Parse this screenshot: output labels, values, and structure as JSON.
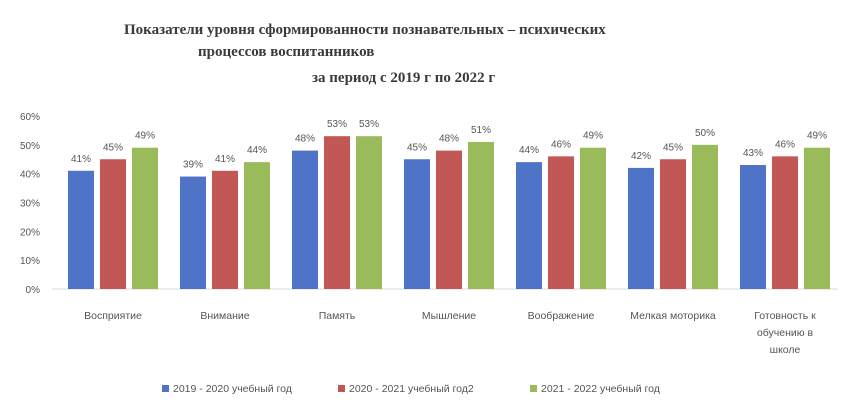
{
  "chart_data": {
    "type": "bar",
    "title": "Показатели уровня сформированности познавательных – психических процессов воспитанников",
    "title_lines": [
      "Показатели уровня сформированности познавательных – психических",
      "процессов воспитанников",
      "за период с 2019 г по 2022 г"
    ],
    "subtitle": "за период с 2019 г по 2022 г",
    "categories": [
      [
        "Восприятие"
      ],
      [
        "Внимание"
      ],
      [
        "Память"
      ],
      [
        "Мышление"
      ],
      [
        "Воображение"
      ],
      [
        "Мелкая моторика"
      ],
      [
        "Готовность к",
        "обучению в",
        "школе"
      ]
    ],
    "series": [
      {
        "name": "2019 - 2020 учебный год",
        "color": "#4f73c6",
        "values": [
          41,
          39,
          48,
          45,
          44,
          42,
          43
        ]
      },
      {
        "name": "2020 - 2021 учебный год2",
        "color": "#c25856",
        "values": [
          45,
          41,
          53,
          48,
          46,
          45,
          46
        ]
      },
      {
        "name": "2021 - 2022 учебный год",
        "color": "#9abb59",
        "values": [
          49,
          44,
          53,
          51,
          49,
          50,
          49
        ]
      }
    ],
    "y_ticks": [
      "0%",
      "10%",
      "20%",
      "30%",
      "40%",
      "50%",
      "60%"
    ],
    "ylim": [
      0,
      60
    ],
    "unit": "%",
    "grid": false,
    "legend_position": "bottom"
  }
}
